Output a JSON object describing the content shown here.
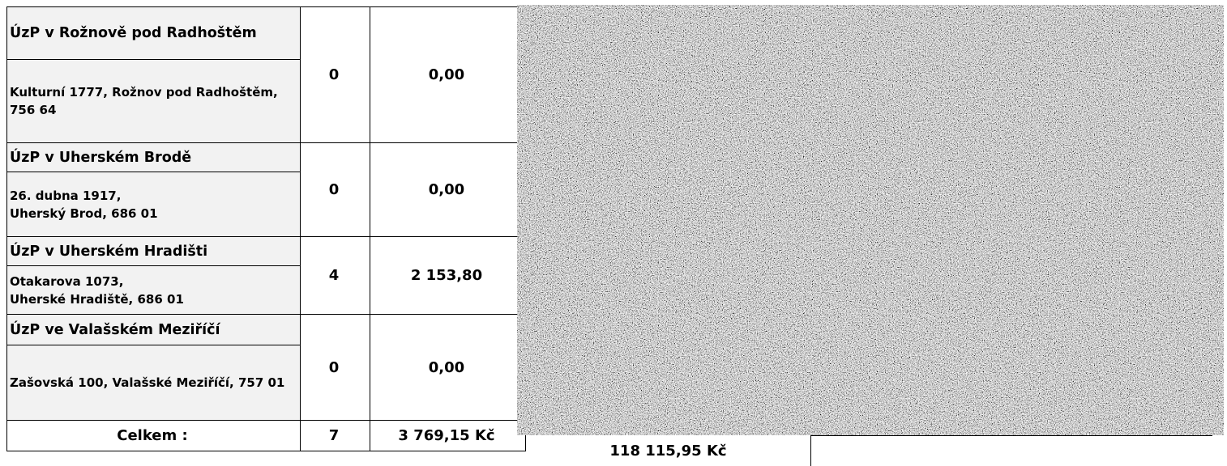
{
  "offices": [
    {
      "name": "ÚzP v Rožnově pod Radhoštěm",
      "address_lines": [
        "Kulturní 1777, Rožnov pod Radhoštěm, 756 64"
      ],
      "count": "0",
      "amount": "0,00"
    },
    {
      "name": "ÚzP v Uherském Brodě",
      "address_lines": [
        "26. dubna 1917,",
        "Uherský Brod, 686 01"
      ],
      "count": "0",
      "amount": "0,00"
    },
    {
      "name": "ÚzP v Uherském Hradišti",
      "address_lines": [
        "Otakarova 1073,",
        "Uherské Hradiště, 686 01"
      ],
      "count": "4",
      "amount": "2 153,80"
    },
    {
      "name": "ÚzP ve Valašském Meziříčí",
      "address_lines": [
        "Zašovská 100, Valašské Meziříčí, 757 01"
      ],
      "count": "0",
      "amount": "0,00"
    }
  ],
  "totals": {
    "label": "Celkem :",
    "count": "7",
    "amount": "3 769,15 Kč",
    "grand_amount": "118 115,95 Kč"
  }
}
